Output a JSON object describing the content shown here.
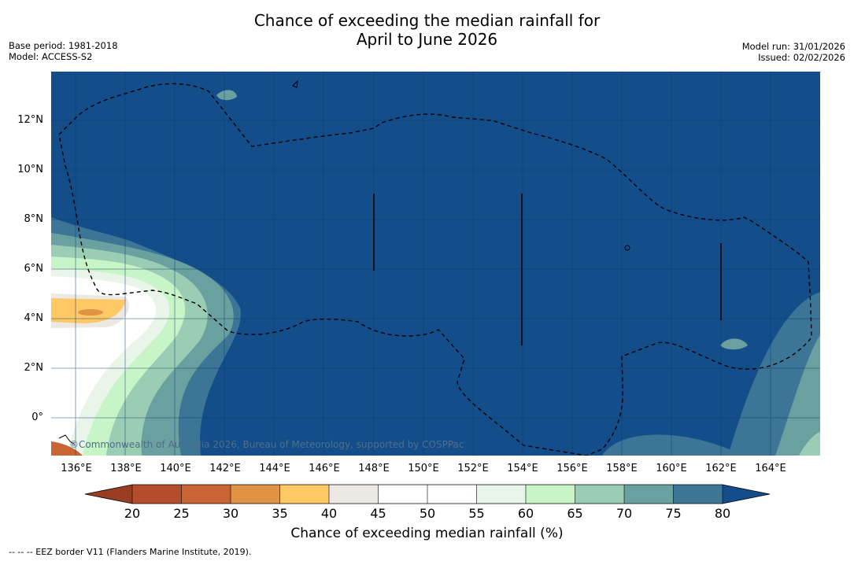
{
  "title": {
    "line1": "Chance of exceeding the median rainfall for",
    "line2": "April to June 2026"
  },
  "meta_left": {
    "base_period": "Base period: 1981-2018",
    "model": "Model: ACCESS-S2"
  },
  "meta_right": {
    "model_run": "Model run: 31/01/2026",
    "issued": "Issued: 02/02/2026"
  },
  "map": {
    "credit": "©Commonwealth of Australia 2026, Bureau of Meteorology, supported by COSPPac",
    "lat_labels": [
      "12°N",
      "10°N",
      "8°N",
      "6°N",
      "4°N",
      "2°N",
      "0°"
    ],
    "lon_labels": [
      "136°E",
      "138°E",
      "140°E",
      "142°E",
      "144°E",
      "146°E",
      "148°E",
      "150°E",
      "152°E",
      "154°E",
      "156°E",
      "158°E",
      "160°E",
      "162°E",
      "164°E"
    ]
  },
  "colorbar": {
    "label": "Chance of exceeding median rainfall (%)",
    "ticks": [
      "20",
      "25",
      "30",
      "35",
      "40",
      "45",
      "50",
      "55",
      "60",
      "65",
      "70",
      "75",
      "80"
    ],
    "colors": [
      "#9a3d22",
      "#b34d2c",
      "#c96534",
      "#e09245",
      "#fec864",
      "#ece8e4",
      "#ffffff",
      "#ffffff",
      "#e9f5e8",
      "#c7f5c7",
      "#9acdb3",
      "#6ba0a0",
      "#3c7596",
      "#134e8a"
    ]
  },
  "footnote": "--  --  -- EEZ border V11 (Flanders Marine Institute, 2019)."
}
